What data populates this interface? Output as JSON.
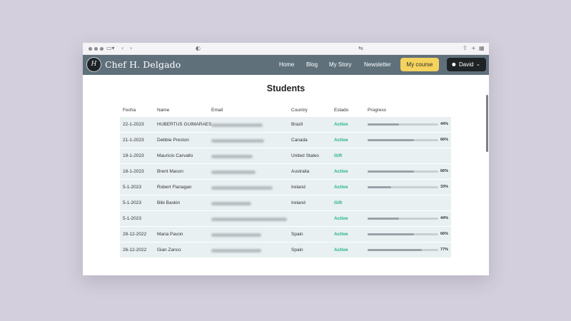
{
  "browser": {
    "icons": [
      "sidebar-icon",
      "back-icon",
      "forward-icon",
      "privacy-icon",
      "translate-icon",
      "share-icon",
      "new-tab-icon",
      "tab-overview-icon"
    ]
  },
  "header": {
    "brand": "Chef H. Delgado",
    "logo_text": "H",
    "nav": {
      "home": "Home",
      "blog": "Blog",
      "story": "My Story",
      "newsletter": "Newsletter"
    },
    "course_button": "My course",
    "user_button": "David"
  },
  "page": {
    "title": "Students"
  },
  "table": {
    "headers": {
      "fecha": "Fecha",
      "name": "Name",
      "email": "Email",
      "country": "Country",
      "estado": "Estado",
      "progress": "Progress"
    },
    "rows": [
      {
        "fecha": "22-1-2023",
        "name": "HUBERTUS GUIMARAES",
        "country": "Brazil",
        "estado": "Active",
        "progress": 44,
        "progress_label": "44%"
      },
      {
        "fecha": "21-1-2023",
        "name": "Debbie Preston",
        "country": "Canada",
        "estado": "Active",
        "progress": 66,
        "progress_label": "66%"
      },
      {
        "fecha": "19-1-2023",
        "name": "Mauricio Carvallo",
        "country": "United States",
        "estado": "Gift",
        "progress": null,
        "progress_label": ""
      },
      {
        "fecha": "18-1-2023",
        "name": "Brent Mason",
        "country": "Australia",
        "estado": "Active",
        "progress": 66,
        "progress_label": "66%"
      },
      {
        "fecha": "5-1-2023",
        "name": "Robert Flanagan",
        "country": "Ireland",
        "estado": "Active",
        "progress": 33,
        "progress_label": "33%"
      },
      {
        "fecha": "5-1-2023",
        "name": "Bibi Baskin",
        "country": "Ireland",
        "estado": "Gift",
        "progress": null,
        "progress_label": ""
      },
      {
        "fecha": "5-1-2023",
        "name": "",
        "country": "",
        "estado": "Active",
        "progress": 44,
        "progress_label": "44%"
      },
      {
        "fecha": "28-12-2022",
        "name": "Maria Pavon",
        "country": "Spain",
        "estado": "Active",
        "progress": 66,
        "progress_label": "66%"
      },
      {
        "fecha": "26-12-2022",
        "name": "Gian Zanco",
        "country": "Spain",
        "estado": "Active",
        "progress": 77,
        "progress_label": "77%"
      }
    ]
  },
  "colors": {
    "header_bg": "#5f707b",
    "accent_yellow": "#f4d35e",
    "active_green": "#21b37e",
    "row_bg": "#e9f0f2",
    "page_bg": "#d3cfdc"
  }
}
